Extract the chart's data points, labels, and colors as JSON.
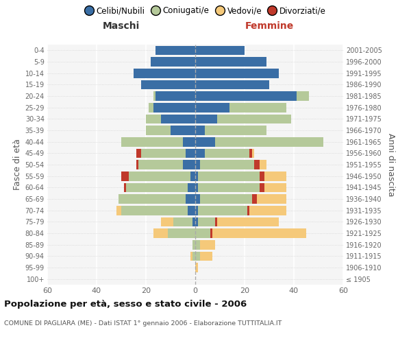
{
  "age_groups": [
    "100+",
    "95-99",
    "90-94",
    "85-89",
    "80-84",
    "75-79",
    "70-74",
    "65-69",
    "60-64",
    "55-59",
    "50-54",
    "45-49",
    "40-44",
    "35-39",
    "30-34",
    "25-29",
    "20-24",
    "15-19",
    "10-14",
    "5-9",
    "0-4"
  ],
  "birth_years": [
    "≤ 1905",
    "1906-1910",
    "1911-1915",
    "1916-1920",
    "1921-1925",
    "1926-1930",
    "1931-1935",
    "1936-1940",
    "1941-1945",
    "1946-1950",
    "1951-1955",
    "1956-1960",
    "1961-1965",
    "1966-1970",
    "1971-1975",
    "1976-1980",
    "1981-1985",
    "1986-1990",
    "1991-1995",
    "1996-2000",
    "2001-2005"
  ],
  "males": {
    "celibi": [
      0,
      0,
      0,
      0,
      0,
      1,
      3,
      4,
      3,
      2,
      5,
      4,
      5,
      10,
      14,
      17,
      16,
      22,
      25,
      18,
      16
    ],
    "coniugati": [
      0,
      0,
      1,
      1,
      11,
      8,
      27,
      27,
      25,
      25,
      18,
      18,
      25,
      10,
      6,
      2,
      1,
      0,
      0,
      0,
      0
    ],
    "vedovi": [
      0,
      0,
      1,
      0,
      6,
      5,
      2,
      0,
      0,
      0,
      0,
      0,
      0,
      0,
      0,
      0,
      0,
      0,
      0,
      0,
      0
    ],
    "divorziati": [
      0,
      0,
      0,
      0,
      0,
      0,
      0,
      0,
      1,
      3,
      1,
      2,
      0,
      0,
      0,
      0,
      0,
      0,
      0,
      0,
      0
    ]
  },
  "females": {
    "nubili": [
      0,
      0,
      0,
      0,
      0,
      1,
      1,
      2,
      1,
      1,
      2,
      4,
      8,
      4,
      9,
      14,
      41,
      30,
      34,
      29,
      20
    ],
    "coniugate": [
      0,
      0,
      2,
      2,
      6,
      7,
      20,
      21,
      25,
      25,
      22,
      18,
      44,
      25,
      30,
      23,
      5,
      0,
      0,
      0,
      0
    ],
    "vedove": [
      0,
      1,
      5,
      6,
      39,
      26,
      16,
      14,
      11,
      11,
      5,
      2,
      0,
      0,
      0,
      0,
      0,
      0,
      0,
      0,
      0
    ],
    "divorziate": [
      0,
      0,
      0,
      0,
      1,
      1,
      1,
      2,
      2,
      2,
      2,
      1,
      0,
      0,
      0,
      0,
      0,
      0,
      0,
      0,
      0
    ]
  },
  "colors": {
    "celibi": "#3a6ea5",
    "coniugati": "#b5c99a",
    "vedovi": "#f5c97a",
    "divorziati": "#c0392b"
  },
  "xlim": 60,
  "title": "Popolazione per età, sesso e stato civile - 2006",
  "subtitle": "COMUNE DI PAGLIARA (ME) - Dati ISTAT 1° gennaio 2006 - Elaborazione TUTTITALIA.IT",
  "ylabel_left": "Fasce di età",
  "ylabel_right": "Anni di nascita",
  "legend_labels": [
    "Celibi/Nubili",
    "Coniugati/e",
    "Vedovi/e",
    "Divorziati/e"
  ]
}
